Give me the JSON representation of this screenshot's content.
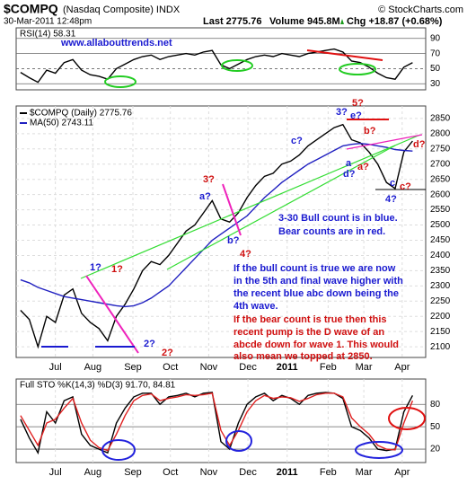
{
  "header": {
    "symbol": "$COMPQ",
    "name": "(Nasdaq Composite) INDX",
    "source": "© StockCharts.com",
    "date": "30-Mar-2011 12:48pm",
    "last": "Last 2775.76",
    "volume": "Volume 945.8M",
    "change": "Chg +18.87 (+0.68%)"
  },
  "chart_data": [
    {
      "type": "line",
      "title": "RSI(14) 58.31",
      "ylim": [
        22,
        104
      ],
      "yticks": [
        30,
        50,
        70,
        90
      ],
      "xlim": [
        -0.5,
        46.5
      ],
      "series": [
        {
          "color": "#000000",
          "values": [
            45,
            38,
            32,
            48,
            44,
            58,
            62,
            48,
            42,
            40,
            36,
            50,
            56,
            62,
            66,
            68,
            62,
            66,
            68,
            70,
            68,
            72,
            74,
            55,
            50,
            56,
            62,
            66,
            68,
            66,
            70,
            68,
            66,
            70,
            72,
            74,
            76,
            72,
            60,
            58,
            52,
            44,
            38,
            36,
            52,
            58
          ]
        }
      ]
    },
    {
      "type": "line",
      "ylim": [
        2065,
        2891
      ],
      "yticks": [
        2100,
        2150,
        2200,
        2250,
        2300,
        2350,
        2400,
        2450,
        2500,
        2550,
        2600,
        2650,
        2700,
        2750,
        2800,
        2850
      ],
      "xlim": [
        -0.5,
        46.5
      ],
      "grid": true,
      "xticks": [
        {
          "value": 4,
          "label": "Jul"
        },
        {
          "value": 8.3,
          "label": "Aug"
        },
        {
          "value": 12.9,
          "label": "Sep"
        },
        {
          "value": 17.2,
          "label": "Oct"
        },
        {
          "value": 21.6,
          "label": "Nov"
        },
        {
          "value": 26.1,
          "label": "Dec"
        },
        {
          "value": 30.6,
          "label": "2011"
        },
        {
          "value": 35.3,
          "label": "Feb"
        },
        {
          "value": 39.4,
          "label": "Mar"
        },
        {
          "value": 43.8,
          "label": "Apr"
        }
      ],
      "series": [
        {
          "name": "$COMPQ (Daily) 2775.76",
          "color": "#000000",
          "values": [
            2220,
            2190,
            2100,
            2200,
            2180,
            2270,
            2290,
            2210,
            2180,
            2160,
            2120,
            2200,
            2240,
            2290,
            2350,
            2380,
            2370,
            2400,
            2440,
            2480,
            2500,
            2540,
            2580,
            2520,
            2510,
            2540,
            2590,
            2630,
            2660,
            2670,
            2700,
            2710,
            2730,
            2760,
            2780,
            2800,
            2820,
            2830,
            2780,
            2770,
            2740,
            2700,
            2640,
            2620,
            2740,
            2776
          ]
        },
        {
          "name": "MA(50) 2743.11",
          "color": "#2020c0",
          "values": [
            2320,
            2310,
            2295,
            2285,
            2275,
            2265,
            2260,
            2255,
            2250,
            2245,
            2240,
            2235,
            2232,
            2235,
            2245,
            2260,
            2280,
            2300,
            2330,
            2360,
            2390,
            2420,
            2450,
            2470,
            2490,
            2510,
            2530,
            2560,
            2590,
            2615,
            2640,
            2660,
            2680,
            2700,
            2715,
            2730,
            2745,
            2760,
            2765,
            2768,
            2765,
            2760,
            2755,
            2748,
            2745,
            2743
          ]
        }
      ],
      "annotations": [
        "www.allabouttrends.net",
        "1?",
        "1?",
        "2?",
        "2?",
        "3?",
        "a?",
        "b?",
        "4?",
        "c?",
        "3?",
        "5?",
        "e?",
        "b?",
        "d?",
        "a",
        "a?",
        "c",
        "c?",
        "4?",
        "d?",
        "3-30 Bull count is in blue.",
        "Bear counts are in red.",
        "If the bull count is true we are now",
        "in the 5th and final wave higher with",
        "the recent blue abc down being the",
        "4th wave.",
        "If the bear count is true then this",
        "recent pump is the D wave of an",
        "abcde down for wave 1. This would",
        "also mean we topped at 2850."
      ]
    },
    {
      "type": "line",
      "title": "Full STO %K(14,3) %D(3) 91.70, 84.81",
      "ylim": [
        2,
        114
      ],
      "yticks": [
        20,
        50,
        80
      ],
      "xlim": [
        -0.5,
        46.5
      ],
      "grid": true,
      "xticks": [
        {
          "value": 4,
          "label": "Jul"
        },
        {
          "value": 8.3,
          "label": "Aug"
        },
        {
          "value": 12.9,
          "label": "Sep"
        },
        {
          "value": 17.2,
          "label": "Oct"
        },
        {
          "value": 21.6,
          "label": "Nov"
        },
        {
          "value": 26.1,
          "label": "Dec"
        },
        {
          "value": 30.6,
          "label": "2011"
        },
        {
          "value": 35.3,
          "label": "Feb"
        },
        {
          "value": 39.4,
          "label": "Mar"
        },
        {
          "value": 43.8,
          "label": "Apr"
        }
      ],
      "series": [
        {
          "color": "#000000",
          "values": [
            60,
            35,
            15,
            70,
            55,
            85,
            90,
            40,
            25,
            20,
            15,
            55,
            75,
            90,
            95,
            95,
            80,
            90,
            92,
            95,
            90,
            95,
            96,
            30,
            20,
            55,
            80,
            90,
            95,
            85,
            92,
            88,
            80,
            92,
            95,
            96,
            95,
            88,
            50,
            45,
            35,
            20,
            18,
            20,
            70,
            92
          ]
        },
        {
          "color": "#e02020",
          "values": [
            65,
            45,
            25,
            55,
            60,
            75,
            88,
            55,
            32,
            22,
            18,
            40,
            65,
            85,
            92,
            94,
            85,
            88,
            90,
            93,
            92,
            93,
            95,
            45,
            25,
            45,
            70,
            85,
            92,
            88,
            90,
            89,
            84,
            88,
            93,
            95,
            95,
            90,
            62,
            50,
            40,
            25,
            20,
            19,
            55,
            85
          ]
        }
      ]
    }
  ]
}
